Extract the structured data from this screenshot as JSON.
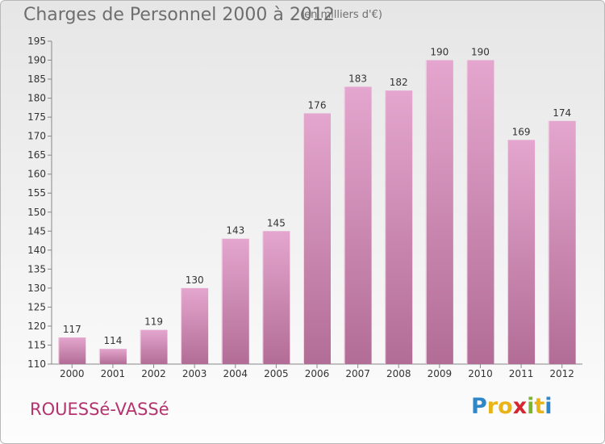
{
  "header": {
    "title": "Charges de Personnel 2000 à 2012",
    "subtitle": "(en milliers d'€)"
  },
  "footer": {
    "commune": "ROUESSé-VASSé",
    "logo_letters": [
      "P",
      "r",
      "o",
      "x",
      "i",
      "t",
      "i"
    ],
    "logo_colors": [
      "#2f87c8",
      "#e8b417",
      "#e8b417",
      "#d6262f",
      "#7cb631",
      "#e8b417",
      "#2f87c8"
    ]
  },
  "colors": {
    "bar_light": "#e4a6ce",
    "bar_dark": "#b26d96",
    "axis": "#888888"
  },
  "chart_data": {
    "type": "bar",
    "title": "Charges de Personnel 2000 à 2012",
    "subtitle": "(en milliers d'€)",
    "categories": [
      "2000",
      "2001",
      "2002",
      "2003",
      "2004",
      "2005",
      "2006",
      "2007",
      "2008",
      "2009",
      "2010",
      "2011",
      "2012"
    ],
    "values": [
      117,
      114,
      119,
      130,
      143,
      145,
      176,
      183,
      182,
      190,
      190,
      169,
      174
    ],
    "ylim": [
      110,
      195
    ],
    "yticks": [
      110,
      115,
      120,
      125,
      130,
      135,
      140,
      145,
      150,
      155,
      160,
      165,
      170,
      175,
      180,
      185,
      190,
      195
    ],
    "grid": false,
    "legend": "none"
  }
}
